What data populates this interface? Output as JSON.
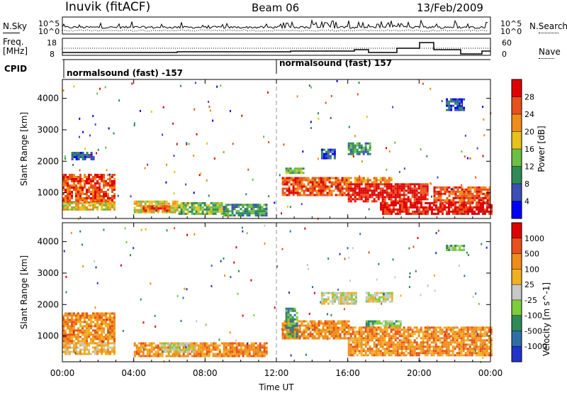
{
  "header": {
    "site": "Inuvik (fitACF)",
    "beam": "Beam 06",
    "date": "13/Feb/2009"
  },
  "top_panels": {
    "nsky_label": "N.Sky",
    "nsearch_label": "N.Search",
    "nsky_ticks": [
      "10^5",
      "10^0"
    ],
    "nsearch_ticks": [
      "10^5",
      "10^0"
    ],
    "freq_label_1": "Freq.",
    "freq_label_2": "[MHz]",
    "freq_ticks": [
      "18",
      "8"
    ],
    "nave_label": "Nave",
    "nave_ticks": [
      "60",
      "0"
    ],
    "cpid_label": "CPID",
    "cpid_segments": [
      {
        "label": "normalsound (fast) -157",
        "start_hour": 0
      },
      {
        "label": "normalsound (fast) 157",
        "start_hour": 12
      }
    ]
  },
  "chart_data": [
    {
      "type": "heatmap",
      "name": "power-panel",
      "xlabel": "Time UT",
      "ylabel": "Slant Range [km]",
      "x_ticks": [
        "00:00",
        "04:00",
        "08:00",
        "12:00",
        "16:00",
        "20:00",
        "00:00"
      ],
      "x_range_hours": [
        0,
        24
      ],
      "y_ticks": [
        1000,
        2000,
        3000,
        4000
      ],
      "y_range_km": [
        180,
        4600
      ],
      "colorbar": {
        "label": "Power [dB]",
        "ticks": [
          "28",
          "24",
          "20",
          "16",
          "12",
          "8",
          "4"
        ],
        "levels": [
          {
            "min": 0,
            "max": 4,
            "color": "#0000ff"
          },
          {
            "min": 4,
            "max": 8,
            "color": "#3b4fb5"
          },
          {
            "min": 8,
            "max": 12,
            "color": "#2e8b57"
          },
          {
            "min": 12,
            "max": 16,
            "color": "#6dbe45"
          },
          {
            "min": 16,
            "max": 20,
            "color": "#e6c21a"
          },
          {
            "min": 20,
            "max": 24,
            "color": "#f08c1a"
          },
          {
            "min": 24,
            "max": 28,
            "color": "#e8511a"
          },
          {
            "min": 28,
            "max": 32,
            "color": "#e00000"
          }
        ]
      },
      "regions": [
        {
          "t0": 0.0,
          "t1": 2.9,
          "r0": 700,
          "r1": 1600,
          "level": 6
        },
        {
          "t0": 0.0,
          "t1": 2.9,
          "r0": 450,
          "r1": 700,
          "level": 4
        },
        {
          "t0": 0.5,
          "t1": 1.8,
          "r0": 2050,
          "r1": 2300,
          "level": 1
        },
        {
          "t0": 4.0,
          "t1": 6.5,
          "r0": 350,
          "r1": 750,
          "level": 4
        },
        {
          "t0": 4.5,
          "t1": 6.0,
          "r0": 450,
          "r1": 600,
          "level": 6
        },
        {
          "t0": 6.5,
          "t1": 9.0,
          "r0": 350,
          "r1": 700,
          "level": 3
        },
        {
          "t0": 9.0,
          "t1": 11.5,
          "r0": 300,
          "r1": 650,
          "level": 2
        },
        {
          "t0": 12.3,
          "t1": 16.0,
          "r0": 900,
          "r1": 1500,
          "level": 6
        },
        {
          "t0": 12.5,
          "t1": 13.5,
          "r0": 1600,
          "r1": 1800,
          "level": 3
        },
        {
          "t0": 16.0,
          "t1": 20.5,
          "r0": 700,
          "r1": 1300,
          "level": 7
        },
        {
          "t0": 16.0,
          "t1": 18.5,
          "r0": 1300,
          "r1": 1500,
          "level": 5
        },
        {
          "t0": 17.8,
          "t1": 24.0,
          "r0": 300,
          "r1": 700,
          "level": 7
        },
        {
          "t0": 20.8,
          "t1": 24.0,
          "r0": 700,
          "r1": 1200,
          "level": 6
        },
        {
          "t0": 16.0,
          "t1": 17.2,
          "r0": 2200,
          "r1": 2600,
          "level": 2
        },
        {
          "t0": 14.5,
          "t1": 15.3,
          "r0": 2100,
          "r1": 2400,
          "level": 1
        },
        {
          "t0": 21.5,
          "t1": 22.5,
          "r0": 3600,
          "r1": 4000,
          "level": 1
        }
      ]
    },
    {
      "type": "heatmap",
      "name": "velocity-panel",
      "xlabel": "Time UT",
      "ylabel": "Slant Range [km]",
      "x_ticks": [
        "00:00",
        "04:00",
        "08:00",
        "12:00",
        "16:00",
        "20:00",
        "00:00"
      ],
      "x_range_hours": [
        0,
        24
      ],
      "y_ticks": [
        1000,
        2000,
        3000,
        4000
      ],
      "y_range_km": [
        180,
        4600
      ],
      "colorbar": {
        "label": "Velocity [m s^-1]",
        "ticks": [
          "1000",
          "500",
          "100",
          "25",
          "-25",
          "-100",
          "-500",
          "-1000"
        ],
        "levels": [
          {
            "color": "#2233cc"
          },
          {
            "color": "#2e6fa8"
          },
          {
            "color": "#2e8b57"
          },
          {
            "color": "#7ccd3c"
          },
          {
            "color": "#c8c8c8"
          },
          {
            "color": "#f0b020"
          },
          {
            "color": "#f08c1a"
          },
          {
            "color": "#e8511a"
          },
          {
            "color": "#e00000"
          }
        ]
      },
      "regions": [
        {
          "t0": 0.0,
          "t1": 2.9,
          "r0": 800,
          "r1": 1750,
          "level": 6
        },
        {
          "t0": 0.0,
          "t1": 2.9,
          "r0": 400,
          "r1": 800,
          "level": 5
        },
        {
          "t0": 4.0,
          "t1": 11.5,
          "r0": 350,
          "r1": 800,
          "level": 6
        },
        {
          "t0": 5.5,
          "t1": 7.5,
          "r0": 500,
          "r1": 800,
          "level": 4
        },
        {
          "t0": 12.3,
          "t1": 16.0,
          "r0": 900,
          "r1": 1500,
          "level": 6
        },
        {
          "t0": 12.5,
          "t1": 13.2,
          "r0": 1000,
          "r1": 1900,
          "level": 2
        },
        {
          "t0": 16.0,
          "t1": 24.0,
          "r0": 400,
          "r1": 1300,
          "level": 6
        },
        {
          "t0": 17.0,
          "t1": 19.0,
          "r0": 1300,
          "r1": 1500,
          "level": 3
        },
        {
          "t0": 14.5,
          "t1": 16.5,
          "r0": 2000,
          "r1": 2400,
          "level": 4
        },
        {
          "t0": 17.0,
          "t1": 18.5,
          "r0": 2100,
          "r1": 2400,
          "level": 4
        },
        {
          "t0": 21.5,
          "t1": 22.5,
          "r0": 3700,
          "r1": 3900,
          "level": 3
        }
      ]
    }
  ]
}
